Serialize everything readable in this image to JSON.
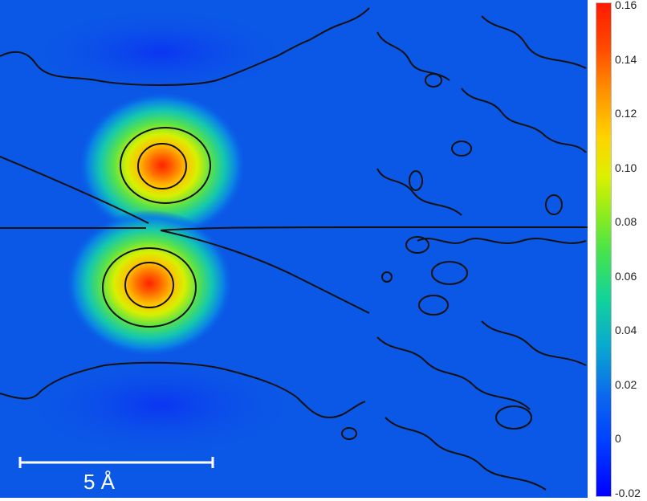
{
  "chart_data": {
    "type": "heatmap",
    "title": "",
    "colorbar": {
      "min": -0.02,
      "max": 0.16,
      "ticks": [
        {
          "value": 0.16,
          "label": "0.16"
        },
        {
          "value": 0.14,
          "label": "0.14"
        },
        {
          "value": 0.12,
          "label": "0.12"
        },
        {
          "value": 0.1,
          "label": "0.10"
        },
        {
          "value": 0.08,
          "label": "0.08"
        },
        {
          "value": 0.06,
          "label": "0.06"
        },
        {
          "value": 0.04,
          "label": "0.04"
        },
        {
          "value": 0.02,
          "label": "0.02"
        },
        {
          "value": 0.0,
          "label": "0"
        },
        {
          "value": -0.02,
          "label": "-0.02"
        }
      ]
    },
    "peaks": [
      {
        "name": "upper",
        "value": 0.155
      },
      {
        "name": "lower",
        "value": 0.15
      }
    ],
    "background_value": 0.0,
    "scale_bar": {
      "length": 5,
      "unit": "Å",
      "label": "5 Å"
    }
  }
}
